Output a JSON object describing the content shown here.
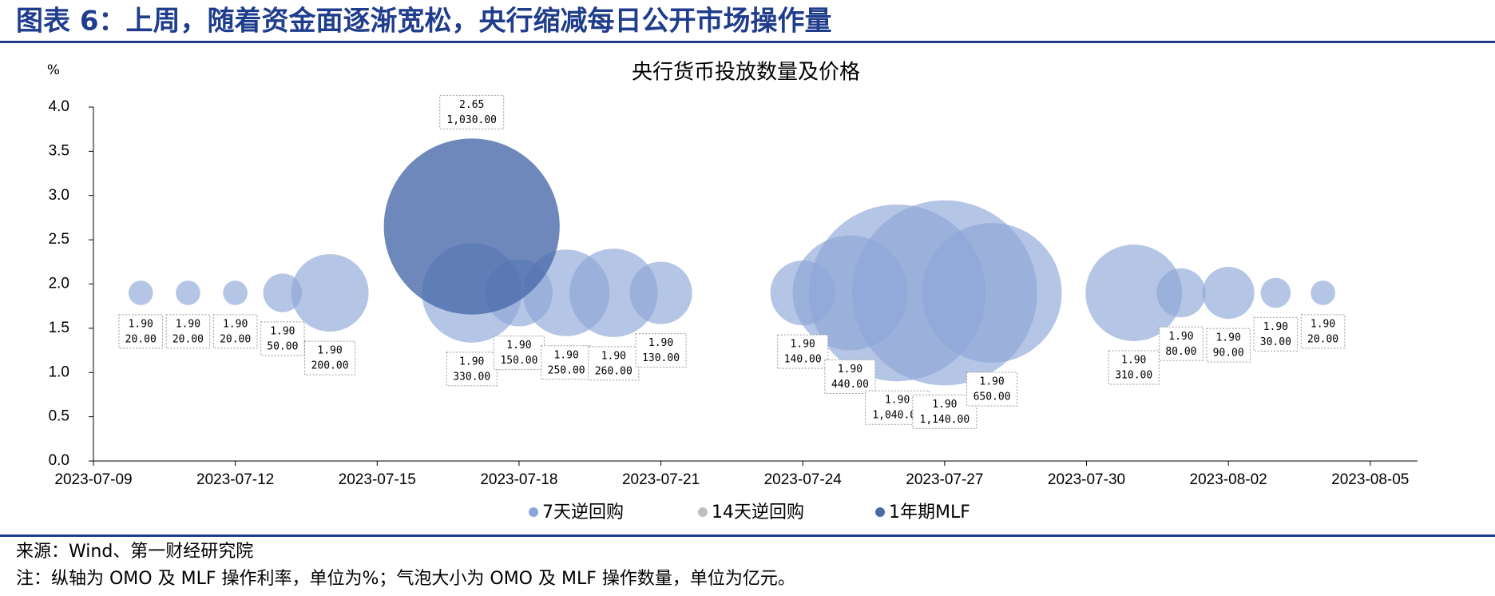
{
  "header": {
    "title": "图表 6：上周，随着资金面逐渐宽松，央行缩减每日公开市场操作量"
  },
  "chart_data": {
    "type": "bubble",
    "title": "央行货币投放数量及价格",
    "y_unit": "%",
    "xlim": [
      "2023-07-09",
      "2023-08-06"
    ],
    "xticks": [
      "2023-07-09",
      "2023-07-12",
      "2023-07-15",
      "2023-07-18",
      "2023-07-21",
      "2023-07-24",
      "2023-07-27",
      "2023-07-30",
      "2023-08-02",
      "2023-08-05"
    ],
    "ylim": [
      0,
      4
    ],
    "yticks": [
      {
        "value": 0,
        "label": "0.0"
      },
      {
        "value": 0.5,
        "label": "0.5"
      },
      {
        "value": 1,
        "label": "1.0"
      },
      {
        "value": 1.5,
        "label": "1.5"
      },
      {
        "value": 2,
        "label": "2.0"
      },
      {
        "value": 2.5,
        "label": "2.5"
      },
      {
        "value": 3,
        "label": "3.0"
      },
      {
        "value": 3.5,
        "label": "3.5"
      },
      {
        "value": 4,
        "label": "4.0"
      }
    ],
    "series": [
      {
        "name": "7天逆回购",
        "color": "#8ea6d7",
        "x": [
          "2023-07-10",
          "2023-07-11",
          "2023-07-12",
          "2023-07-13",
          "2023-07-14",
          "2023-07-17",
          "2023-07-18",
          "2023-07-19",
          "2023-07-20",
          "2023-07-21",
          "2023-07-24",
          "2023-07-25",
          "2023-07-26",
          "2023-07-27",
          "2023-07-28",
          "2023-07-31",
          "2023-08-01",
          "2023-08-02",
          "2023-08-03",
          "2023-08-04"
        ],
        "values": [
          1.9,
          1.9,
          1.9,
          1.9,
          1.9,
          1.9,
          1.9,
          1.9,
          1.9,
          1.9,
          1.9,
          1.9,
          1.9,
          1.9,
          1.9,
          1.9,
          1.9,
          1.9,
          1.9,
          1.9
        ],
        "value_labels": [
          "1.90",
          "1.90",
          "1.90",
          "1.90",
          "1.90",
          "1.90",
          "1.90",
          "1.90",
          "1.90",
          "1.90",
          "1.90",
          "1.90",
          "1.90",
          "1.90",
          "1.90",
          "1.90",
          "1.90",
          "1.90",
          "1.90",
          "1.90"
        ],
        "sizes": [
          20,
          20,
          20,
          50,
          200,
          330,
          150,
          250,
          260,
          130,
          140,
          440,
          1040,
          1140,
          650,
          310,
          80,
          90,
          30,
          20
        ],
        "size_labels": [
          "20.00",
          "20.00",
          "20.00",
          "50.00",
          "200.00",
          "330.00",
          "150.00",
          "250.00",
          "260.00",
          "130.00",
          "140.00",
          "440.00",
          "1,040.00",
          "1,140.00",
          "650.00",
          "310.00",
          "80.00",
          "90.00",
          "30.00",
          "20.00"
        ]
      },
      {
        "name": "14天逆回购",
        "color": "#bfbfbf",
        "x": [],
        "values": [],
        "value_labels": [],
        "sizes": [],
        "size_labels": []
      },
      {
        "name": "1年期MLF",
        "color": "#4a6aaa",
        "x": [
          "2023-07-17"
        ],
        "values": [
          2.65
        ],
        "value_labels": [
          "2.65"
        ],
        "sizes": [
          1030
        ],
        "size_labels": [
          "1,030.00"
        ]
      }
    ]
  },
  "footer": {
    "source": "来源：Wind、第一财经研究院",
    "note": "注：纵轴为 OMO 及 MLF 操作利率，单位为%；气泡大小为 OMO 及 MLF 操作数量，单位为亿元。"
  }
}
